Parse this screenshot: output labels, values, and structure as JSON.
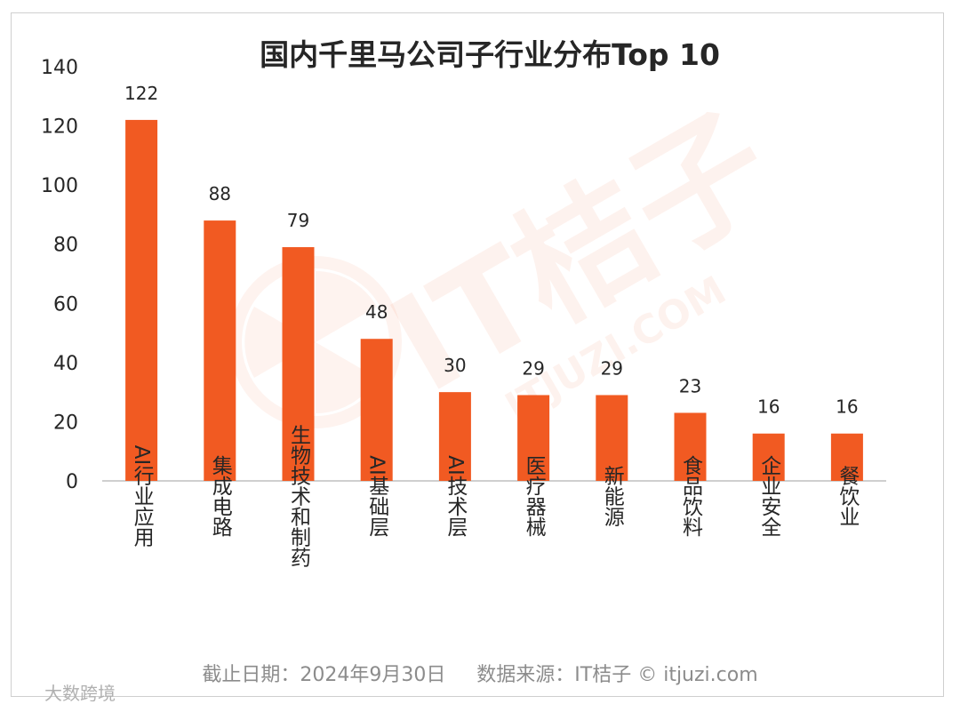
{
  "chart_data": {
    "type": "bar",
    "title": "国内千里马公司子行业分布Top 10",
    "categories": [
      "AI行业应用",
      "集成电路",
      "生物技术和制药",
      "AI基础层",
      "AI技术层",
      "医疗器械",
      "新能源",
      "食品饮料",
      "企业安全",
      "餐饮业"
    ],
    "values": [
      122,
      88,
      79,
      48,
      30,
      29,
      29,
      23,
      16,
      16
    ],
    "ylim": [
      0,
      140
    ],
    "yticks": [
      0,
      20,
      40,
      60,
      80,
      100,
      120,
      140
    ],
    "xlabel": "",
    "ylabel": "",
    "bar_color": "#f15a22",
    "grid": false,
    "legend": "none"
  },
  "footer": "截止日期：2024年9月30日     数据来源：IT桔子 © itjuzi.com",
  "watermark": {
    "brand": "IT桔子",
    "url": "ITJUZI.COM"
  },
  "credit": "大数跨境"
}
